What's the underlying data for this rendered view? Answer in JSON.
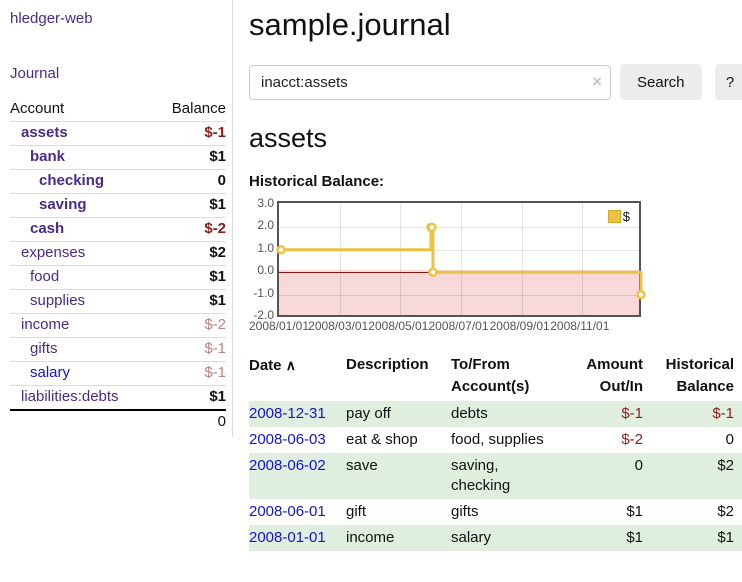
{
  "colors": {
    "link_purple": "#4a2b8a",
    "link_blue": "#1414cc",
    "negative_strong": "#8f1b1b",
    "negative_soft": "#c17f7f",
    "row_stripe_green": "#dfeede",
    "button_bg": "#ececec",
    "chart_line_yellow": "#edc240",
    "chart_negative_fill": "#f8d9d9",
    "chart_zero_line": "#8b1414",
    "chart_border": "#545454"
  },
  "brand": {
    "label": "hledger-web"
  },
  "sidebar": {
    "journal_link": "Journal",
    "accounts_header": {
      "account": "Account",
      "balance": "Balance"
    },
    "accounts": [
      {
        "name": "assets",
        "balance": "$-1",
        "depth": 1,
        "emphasis": true,
        "negative": "strong"
      },
      {
        "name": "bank",
        "balance": "$1",
        "depth": 2,
        "emphasis": true
      },
      {
        "name": "checking",
        "balance": "0",
        "depth": 3,
        "emphasis": true
      },
      {
        "name": "saving",
        "balance": "$1",
        "depth": 3,
        "emphasis": true
      },
      {
        "name": "cash",
        "balance": "$-2",
        "depth": 2,
        "emphasis": true,
        "negative": "strong"
      },
      {
        "name": "expenses",
        "balance": "$2",
        "depth": 1
      },
      {
        "name": "food",
        "balance": "$1",
        "depth": 2
      },
      {
        "name": "supplies",
        "balance": "$1",
        "depth": 2
      },
      {
        "name": "income",
        "balance": "$-2",
        "depth": 1,
        "negative": "soft"
      },
      {
        "name": "gifts",
        "balance": "$-1",
        "depth": 2,
        "negative": "soft"
      },
      {
        "name": "salary",
        "balance": "$-1",
        "depth": 2,
        "negative": "soft",
        "link_style": "unvisited"
      },
      {
        "name": "liabilities:debts",
        "balance": "$1",
        "depth": 1
      }
    ],
    "total": "0"
  },
  "main": {
    "title": "sample.journal",
    "search": {
      "value": "inacct:assets",
      "clear_icon": "×",
      "search_button": "Search",
      "help_button": "?"
    },
    "account_heading": "assets",
    "chart_heading": "Historical Balance:"
  },
  "chart_data": {
    "type": "line",
    "line_style": "step-after",
    "title": "Historical Balance",
    "series": [
      {
        "name": "$",
        "points": [
          [
            "2008-01-01",
            1
          ],
          [
            "2008-06-01",
            2
          ],
          [
            "2008-06-02",
            2
          ],
          [
            "2008-06-03",
            0
          ],
          [
            "2008-12-31",
            -1
          ]
        ]
      }
    ],
    "x_range": [
      "2008-01-01",
      "2008-12-31"
    ],
    "x_ticks": [
      "2008/01/01",
      "2008/03/01",
      "2008/05/01",
      "2008/07/01",
      "2008/09/01",
      "2008/11/01"
    ],
    "x_tick_dates": [
      "2008-01-01",
      "2008-03-01",
      "2008-05-01",
      "2008-07-01",
      "2008-09-01",
      "2008-11-01"
    ],
    "ylim": [
      -2,
      3
    ],
    "y_ticks": [
      3,
      2,
      1,
      0,
      -1,
      -2
    ],
    "y_tick_labels": [
      "3.0",
      "2.0",
      "1.0",
      "0.0",
      "-1.0",
      "-2.0"
    ],
    "grid": true,
    "legend_position": "top-right",
    "negative_region": {
      "below": 0
    }
  },
  "register": {
    "headers": {
      "date": "Date",
      "sort_icon": "∧",
      "description": "Description",
      "account_line1": "To/From",
      "account_line2": "Account(s)",
      "amount_line1": "Amount",
      "amount_line2": "Out/In",
      "balance_line1": "Historical",
      "balance_line2": "Balance"
    },
    "rows": [
      {
        "date": "2008-12-31",
        "description": "pay off",
        "accounts": "debts",
        "amount": "$-1",
        "balance": "$-1"
      },
      {
        "date": "2008-06-03",
        "description": "eat & shop",
        "accounts": "food, supplies",
        "amount": "$-2",
        "balance": "0"
      },
      {
        "date": "2008-06-02",
        "description": "save",
        "accounts": "saving, checking",
        "amount": "0",
        "balance": "$2"
      },
      {
        "date": "2008-06-01",
        "description": "gift",
        "accounts": "gifts",
        "amount": "$1",
        "balance": "$2"
      },
      {
        "date": "2008-01-01",
        "description": "income",
        "accounts": "salary",
        "amount": "$1",
        "balance": "$1"
      }
    ]
  }
}
